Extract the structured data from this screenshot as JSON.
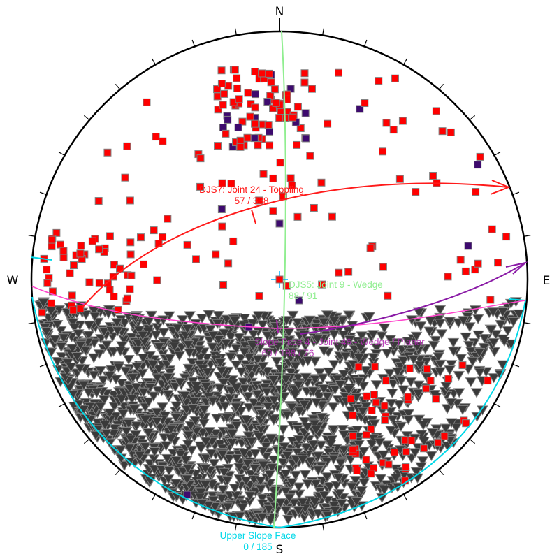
{
  "cardinals": {
    "north": "N",
    "south": "S",
    "east": "E",
    "west": "W"
  },
  "planes": {
    "djs7": {
      "name": "DJS7: Joint 24 - Toppling",
      "orientation": "57 / 338",
      "color": "#ff1a1a"
    },
    "djs5": {
      "name": "DJS5: Joint 9 - Wedge",
      "orientation": "88 / 91",
      "color": "#90ee90"
    },
    "slope": {
      "name": "Slope Face 4 - Joint 46 - Wedge / Planar",
      "orientation": "60 / 188 / 76",
      "color": "#b026b0"
    },
    "upper_slope": {
      "name": "Upper Slope Face",
      "orientation": "0 / 185",
      "color": "#00d8e8"
    }
  },
  "pole_colors": {
    "red": "#ff0000",
    "purple": "#3d0a6e",
    "gray_fill": "#3a3a3a",
    "outline": "#808080"
  }
}
